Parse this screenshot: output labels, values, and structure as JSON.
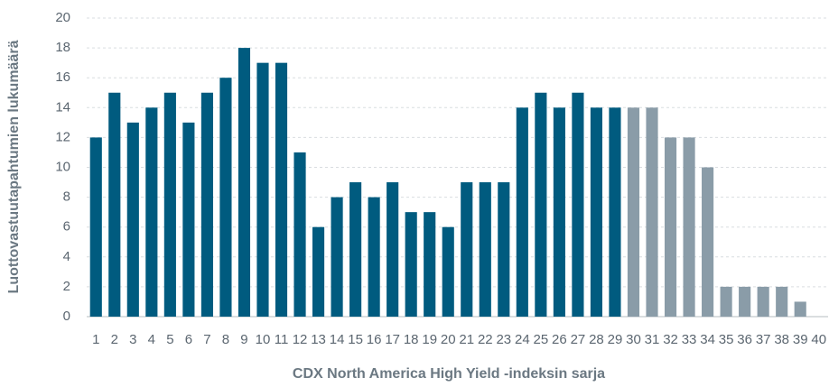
{
  "chart_data": {
    "type": "bar",
    "x_label": "CDX North America High Yield -indeksin sarja",
    "y_label": "Luottovastuutapahtumien lukumäärä",
    "categories": [
      "1",
      "2",
      "3",
      "4",
      "5",
      "6",
      "7",
      "8",
      "9",
      "10",
      "11",
      "12",
      "13",
      "14",
      "15",
      "16",
      "17",
      "18",
      "19",
      "20",
      "21",
      "22",
      "23",
      "24",
      "25",
      "26",
      "27",
      "28",
      "29",
      "30",
      "31",
      "32",
      "33",
      "34",
      "35",
      "36",
      "37",
      "38",
      "39",
      "40"
    ],
    "values": [
      12,
      15,
      13,
      14,
      15,
      13,
      15,
      16,
      18,
      17,
      17,
      11,
      6,
      8,
      9,
      8,
      9,
      7,
      7,
      6,
      9,
      9,
      9,
      14,
      15,
      14,
      15,
      14,
      14,
      14,
      14,
      12,
      12,
      10,
      2,
      2,
      2,
      2,
      1,
      null
    ],
    "colors": [
      "#005b7f",
      "#005b7f",
      "#005b7f",
      "#005b7f",
      "#005b7f",
      "#005b7f",
      "#005b7f",
      "#005b7f",
      "#005b7f",
      "#005b7f",
      "#005b7f",
      "#005b7f",
      "#005b7f",
      "#005b7f",
      "#005b7f",
      "#005b7f",
      "#005b7f",
      "#005b7f",
      "#005b7f",
      "#005b7f",
      "#005b7f",
      "#005b7f",
      "#005b7f",
      "#005b7f",
      "#005b7f",
      "#005b7f",
      "#005b7f",
      "#005b7f",
      "#005b7f",
      "#8a9ca8",
      "#8a9ca8",
      "#8a9ca8",
      "#8a9ca8",
      "#8a9ca8",
      "#8a9ca8",
      "#8a9ca8",
      "#8a9ca8",
      "#8a9ca8",
      "#8a9ca8",
      null
    ],
    "ylim": [
      0,
      20
    ],
    "yticks": [
      0,
      2,
      4,
      6,
      8,
      10,
      12,
      14,
      16,
      18,
      20
    ],
    "grid": true
  }
}
